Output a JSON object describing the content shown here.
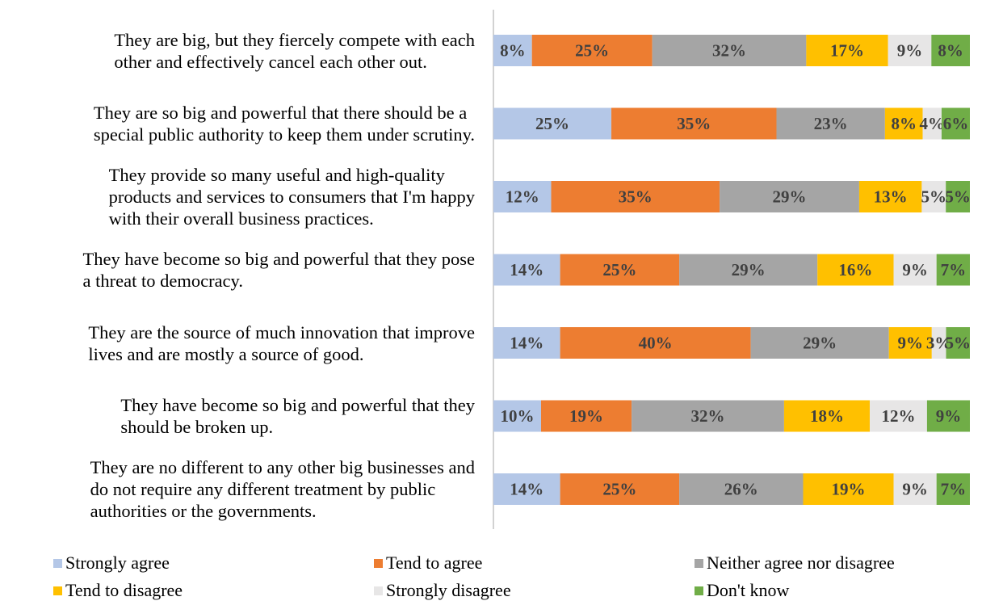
{
  "chart_data": {
    "type": "bar",
    "stacked": true,
    "orientation": "horizontal",
    "normalized": true,
    "categories": [
      [
        "They are big, but they fiercely compete with each",
        "other and effectively cancel each other out."
      ],
      [
        "They are so big and powerful that there should be a",
        "special public authority to keep them under scrutiny."
      ],
      [
        "They provide so many useful and high-quality",
        "products and services to consumers that I'm happy",
        "with their overall business practices."
      ],
      [
        "They have become so big and powerful that they pose",
        "a threat to democracy."
      ],
      [
        "They are the source of much innovation that improve",
        "lives and are mostly a source of good."
      ],
      [
        "They have become so big and powerful that they",
        "should be broken up."
      ],
      [
        "They are no different to any other big businesses and",
        "do not require any different treatment by public",
        "authorities or the governments."
      ]
    ],
    "series": [
      {
        "name": "Strongly agree",
        "color": "#b4c7e7",
        "values": [
          8,
          25,
          12,
          14,
          14,
          10,
          14
        ],
        "labels": [
          "8%",
          "25%",
          "12%",
          "14%",
          "14%",
          "10%",
          "14%"
        ]
      },
      {
        "name": "Tend to agree",
        "color": "#ed7d31",
        "values": [
          25,
          35,
          35,
          25,
          40,
          19,
          25
        ],
        "labels": [
          "25%",
          "35%",
          "35%",
          "25%",
          "40%",
          "19%",
          "25%"
        ]
      },
      {
        "name": "Neither agree nor disagree",
        "color": "#a5a5a5",
        "values": [
          32,
          23,
          29,
          29,
          29,
          32,
          26
        ],
        "labels": [
          "32%",
          "23%",
          "29%",
          "29%",
          "29%",
          "32%",
          "26%"
        ]
      },
      {
        "name": "Tend to disagree",
        "color": "#ffc000",
        "values": [
          17,
          8,
          13,
          16,
          9,
          18,
          19
        ],
        "labels": [
          "17%",
          "8%",
          "13%",
          "16%",
          "9%",
          "18%",
          "19%"
        ]
      },
      {
        "name": "Strongly disagree",
        "color": "#e7e6e6",
        "values": [
          9,
          4,
          5,
          9,
          3,
          12,
          9
        ],
        "labels": [
          "9%",
          "4%",
          "5%",
          "9%",
          "3%",
          "12%",
          "9%"
        ]
      },
      {
        "name": "Don't know",
        "color": "#70ad47",
        "values": [
          8,
          6,
          5,
          7,
          5,
          9,
          7
        ],
        "labels": [
          "8%",
          "6%",
          "5%",
          "7%",
          "5%",
          "9%",
          "7%"
        ]
      }
    ],
    "legend_position": "bottom",
    "grid": false,
    "data_labels": true
  }
}
